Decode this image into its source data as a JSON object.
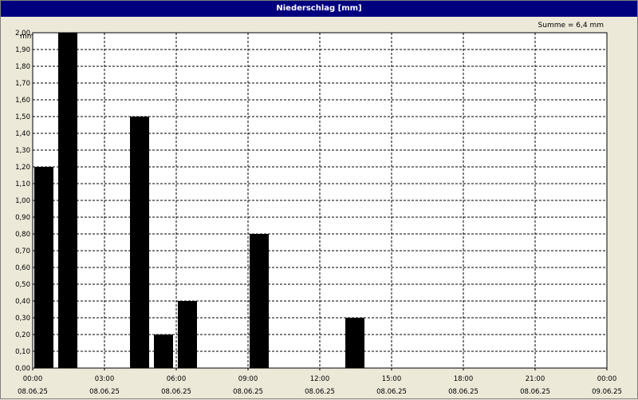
{
  "window": {
    "title": "Niederschlag [mm]"
  },
  "summary": {
    "text": "Summe = 6,4 mm"
  },
  "colors": {
    "titlebar": "#00007f",
    "bar": "#000000",
    "background": "#ece9d8",
    "grid": "#000000"
  },
  "chart_data": {
    "type": "bar",
    "title": "Niederschlag [mm]",
    "ylabel": "mm",
    "xlabel": "",
    "ylim": [
      0,
      2.0
    ],
    "yticks": [
      "0,00",
      "0,10",
      "0,20",
      "0,30",
      "0,40",
      "0,50",
      "0,60",
      "0,70",
      "0,80",
      "0,90",
      "1,00",
      "1,10",
      "1,20",
      "1,30",
      "1,40",
      "1,50",
      "1,60",
      "1,70",
      "1,80",
      "1,90",
      "2,00"
    ],
    "x_range_hours": [
      0,
      24
    ],
    "xticks": [
      {
        "time": "00:00",
        "date": "08.06.25"
      },
      {
        "time": "03:00",
        "date": "08.06.25"
      },
      {
        "time": "06:00",
        "date": "08.06.25"
      },
      {
        "time": "09:00",
        "date": "08.06.25"
      },
      {
        "time": "12:00",
        "date": "08.06.25"
      },
      {
        "time": "15:00",
        "date": "08.06.25"
      },
      {
        "time": "18:00",
        "date": "08.06.25"
      },
      {
        "time": "21:00",
        "date": "08.06.25"
      },
      {
        "time": "00:00",
        "date": "09.06.25"
      }
    ],
    "bars": [
      {
        "time": "00:00",
        "value": 1.2
      },
      {
        "time": "01:00",
        "value": 2.0
      },
      {
        "time": "04:00",
        "value": 1.5
      },
      {
        "time": "05:00",
        "value": 0.2
      },
      {
        "time": "06:00",
        "value": 0.4
      },
      {
        "time": "09:00",
        "value": 0.8
      },
      {
        "time": "13:00",
        "value": 0.3
      }
    ],
    "grid": true
  }
}
